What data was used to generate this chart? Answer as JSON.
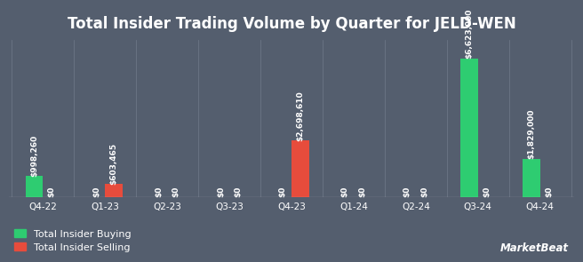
{
  "title": "Total Insider Trading Volume by Quarter for JELD-WEN",
  "quarters": [
    "Q4-22",
    "Q1-23",
    "Q2-23",
    "Q3-23",
    "Q4-23",
    "Q1-24",
    "Q2-24",
    "Q3-24",
    "Q4-24"
  ],
  "buying": [
    998260,
    0,
    0,
    0,
    0,
    0,
    0,
    6623000,
    1829000
  ],
  "selling": [
    0,
    603465,
    0,
    0,
    2698610,
    0,
    0,
    0,
    0
  ],
  "buying_labels": [
    "$998,260",
    "$0",
    "$0",
    "$0",
    "$0",
    "$0",
    "$0",
    "$6,623,000",
    "$1,829,000"
  ],
  "selling_labels": [
    "$0",
    "$603,465",
    "$0",
    "$0",
    "$2,698,610",
    "$0",
    "$0",
    "$0",
    "$0"
  ],
  "buying_color": "#2ecc71",
  "selling_color": "#e74c3c",
  "bg_color": "#545e6e",
  "text_color": "#ffffff",
  "grid_color": "#6b7585",
  "legend_buying": "Total Insider Buying",
  "legend_selling": "Total Insider Selling",
  "bar_width": 0.28,
  "ylim": [
    0,
    7500000
  ]
}
